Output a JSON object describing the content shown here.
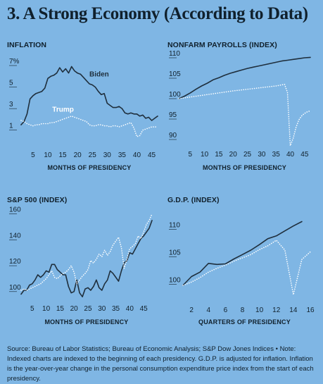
{
  "page": {
    "title_num": "3.",
    "title_text": "A Strong Economy (According to Data)",
    "source_text": "Source: Bureau of Labor Statistics; Bureau of Economic Analysis; S&P Dow Jones Indices  •  Note: Indexed charts are indexed to the beginning of each presidency. G.D.P. is adjusted for inflation. Inflation is the year-over-year change in the personal consumption expenditure price index from the start of each presidency."
  },
  "colors": {
    "background": "#7fb6e4",
    "biden": "#1f2f3d",
    "trump": "#ffffff",
    "text": "#10202c"
  },
  "chart_data": [
    {
      "id": "inflation",
      "type": "line",
      "title": "INFLATION",
      "xlabel": "MONTHS OF PRESIDENCY",
      "xlim": [
        1,
        47
      ],
      "ylim": [
        0,
        7
      ],
      "xticks": [
        5,
        10,
        15,
        20,
        25,
        30,
        35,
        40,
        45
      ],
      "yticks": [
        1,
        3,
        5,
        7
      ],
      "ytick_labels": [
        "1",
        "3",
        "5",
        "7%"
      ],
      "annotations": {
        "biden": "Biden",
        "trump": "Trump"
      },
      "series": [
        {
          "name": "Biden",
          "style": "solid",
          "x": [
            1,
            2,
            3,
            4,
            5,
            6,
            7,
            8,
            9,
            10,
            11,
            12,
            13,
            14,
            15,
            16,
            17,
            18,
            19,
            20,
            21,
            22,
            23,
            24,
            25,
            26,
            27,
            28,
            29,
            30,
            31,
            32,
            33,
            34,
            35,
            36,
            37,
            38,
            39,
            40,
            41,
            42,
            43,
            44,
            45,
            46,
            47
          ],
          "y": [
            1.5,
            1.8,
            2.5,
            3.9,
            4.2,
            4.4,
            4.5,
            4.6,
            4.9,
            5.8,
            6.0,
            6.1,
            6.3,
            6.8,
            6.4,
            6.7,
            6.3,
            6.9,
            6.5,
            6.3,
            6.2,
            5.9,
            5.6,
            5.3,
            5.2,
            5.0,
            4.6,
            4.3,
            4.4,
            3.5,
            3.3,
            3.1,
            3.1,
            3.2,
            3.0,
            2.6,
            2.5,
            2.6,
            2.5,
            2.5,
            2.3,
            2.4,
            2.1,
            2.2,
            1.9,
            2.1,
            2.3
          ]
        },
        {
          "name": "Trump",
          "style": "dotted",
          "x": [
            1,
            2,
            3,
            4,
            5,
            6,
            7,
            8,
            9,
            10,
            11,
            12,
            13,
            14,
            15,
            16,
            17,
            18,
            19,
            20,
            21,
            22,
            23,
            24,
            25,
            26,
            27,
            28,
            29,
            30,
            31,
            32,
            33,
            34,
            35,
            36,
            37,
            38,
            39,
            40,
            41,
            42,
            43,
            44,
            45,
            46,
            47
          ],
          "y": [
            1.9,
            1.8,
            1.6,
            1.5,
            1.4,
            1.5,
            1.5,
            1.6,
            1.6,
            1.6,
            1.7,
            1.7,
            1.8,
            1.9,
            2.0,
            2.1,
            2.2,
            2.3,
            2.2,
            2.1,
            2.0,
            1.9,
            1.8,
            1.5,
            1.4,
            1.4,
            1.5,
            1.5,
            1.4,
            1.4,
            1.3,
            1.4,
            1.4,
            1.3,
            1.4,
            1.5,
            1.6,
            1.7,
            1.2,
            0.4,
            0.5,
            1.0,
            1.1,
            1.2,
            1.3,
            1.3,
            1.3
          ]
        }
      ]
    },
    {
      "id": "payrolls",
      "type": "line",
      "title": "NONFARM PAYROLLS (INDEX)",
      "xlabel": "MONTHS OF PRESIDENCY",
      "xlim": [
        1,
        47
      ],
      "ylim": [
        90,
        110
      ],
      "xticks": [
        5,
        10,
        15,
        20,
        25,
        30,
        35,
        40,
        45
      ],
      "yticks": [
        90,
        95,
        100,
        105,
        110
      ],
      "series": [
        {
          "name": "Biden",
          "style": "solid",
          "x": [
            1,
            3,
            5,
            7,
            9,
            11,
            13,
            15,
            17,
            19,
            21,
            23,
            25,
            27,
            29,
            31,
            33,
            35,
            37,
            39,
            41,
            43,
            45,
            47
          ],
          "y": [
            100,
            100.6,
            101.4,
            102.3,
            103.1,
            103.8,
            104.6,
            105.1,
            105.7,
            106.2,
            106.6,
            107.0,
            107.4,
            107.7,
            108.0,
            108.3,
            108.6,
            108.9,
            109.2,
            109.4,
            109.6,
            109.8,
            110.0,
            110.1
          ]
        },
        {
          "name": "Trump",
          "style": "dotted",
          "x": [
            1,
            5,
            10,
            15,
            20,
            25,
            30,
            35,
            38,
            39,
            40,
            41,
            42,
            43,
            44,
            45,
            46,
            47
          ],
          "y": [
            100,
            100.4,
            100.9,
            101.4,
            101.9,
            102.3,
            102.7,
            103.1,
            103.5,
            101.5,
            88.5,
            90.3,
            93.0,
            94.8,
            95.8,
            96.4,
            96.8,
            97.0
          ]
        }
      ]
    },
    {
      "id": "sp500",
      "type": "line",
      "title": "S&P 500 (INDEX)",
      "xlabel": "MONTHS OF PRESIDENCY",
      "xlim": [
        1,
        48
      ],
      "ylim": [
        95,
        162
      ],
      "xticks": [
        5,
        10,
        15,
        20,
        25,
        30,
        35,
        40,
        45
      ],
      "yticks": [
        100,
        120,
        140,
        160
      ],
      "series": [
        {
          "name": "Biden",
          "style": "solid",
          "x": [
            1,
            2,
            3,
            4,
            5,
            6,
            7,
            8,
            9,
            10,
            11,
            12,
            13,
            14,
            15,
            16,
            17,
            18,
            19,
            20,
            21,
            22,
            23,
            24,
            25,
            26,
            27,
            28,
            29,
            30,
            31,
            32,
            33,
            34,
            35,
            36,
            37,
            38,
            39,
            40,
            41,
            42,
            43,
            44,
            45,
            46,
            47,
            48
          ],
          "y": [
            98,
            101,
            101,
            105,
            106,
            109,
            113,
            111,
            113,
            116,
            115,
            121,
            121,
            117,
            115,
            113,
            113,
            104,
            99,
            100,
            109,
            99,
            96,
            102,
            103,
            101,
            104,
            109,
            103,
            101,
            106,
            109,
            116,
            114,
            111,
            108,
            116,
            122,
            124,
            130,
            129,
            133,
            137,
            141,
            143,
            146,
            149,
            155
          ]
        },
        {
          "name": "Trump",
          "style": "dotted",
          "x": [
            1,
            2,
            3,
            4,
            5,
            6,
            7,
            8,
            9,
            10,
            11,
            12,
            13,
            14,
            15,
            16,
            17,
            18,
            19,
            20,
            21,
            22,
            23,
            24,
            25,
            26,
            27,
            28,
            29,
            30,
            31,
            32,
            33,
            34,
            35,
            36,
            37,
            38,
            39,
            40,
            41,
            42,
            43,
            44,
            45,
            46,
            47,
            48
          ],
          "y": [
            101,
            102,
            101,
            102,
            103,
            104,
            105,
            106,
            108,
            110,
            113,
            116,
            111,
            110,
            112,
            114,
            115,
            117,
            120,
            115,
            106,
            109,
            112,
            114,
            117,
            124,
            122,
            125,
            129,
            127,
            132,
            128,
            131,
            136,
            139,
            142,
            134,
            118,
            125,
            133,
            135,
            137,
            143,
            141,
            146,
            152,
            155,
            160
          ]
        }
      ]
    },
    {
      "id": "gdp",
      "type": "line",
      "title": "G.D.P. (INDEX)",
      "xlabel": "QUARTERS OF PRESIDENCY",
      "xlim": [
        0.5,
        16
      ],
      "ylim": [
        98,
        113
      ],
      "xticks": [
        2,
        4,
        6,
        8,
        10,
        12,
        14,
        16
      ],
      "yticks": [
        100,
        105,
        110
      ],
      "series": [
        {
          "name": "Biden",
          "style": "solid",
          "x": [
            1,
            2,
            3,
            4,
            5,
            6,
            7,
            8,
            9,
            10,
            11,
            12,
            13,
            14,
            15
          ],
          "y": [
            99.8,
            101.4,
            102.2,
            103.8,
            103.6,
            103.7,
            104.6,
            105.4,
            106.2,
            107.2,
            108.3,
            108.8,
            109.7,
            110.6,
            111.4
          ]
        },
        {
          "name": "Trump",
          "style": "dotted",
          "x": [
            1,
            2,
            3,
            4,
            5,
            6,
            7,
            8,
            9,
            10,
            11,
            12,
            13,
            14,
            15,
            16
          ],
          "y": [
            99.8,
            100.4,
            101.2,
            102.2,
            102.9,
            103.5,
            104.2,
            104.8,
            105.4,
            106.3,
            107.0,
            108.0,
            106.2,
            98.1,
            104.5,
            105.9
          ]
        }
      ]
    }
  ]
}
